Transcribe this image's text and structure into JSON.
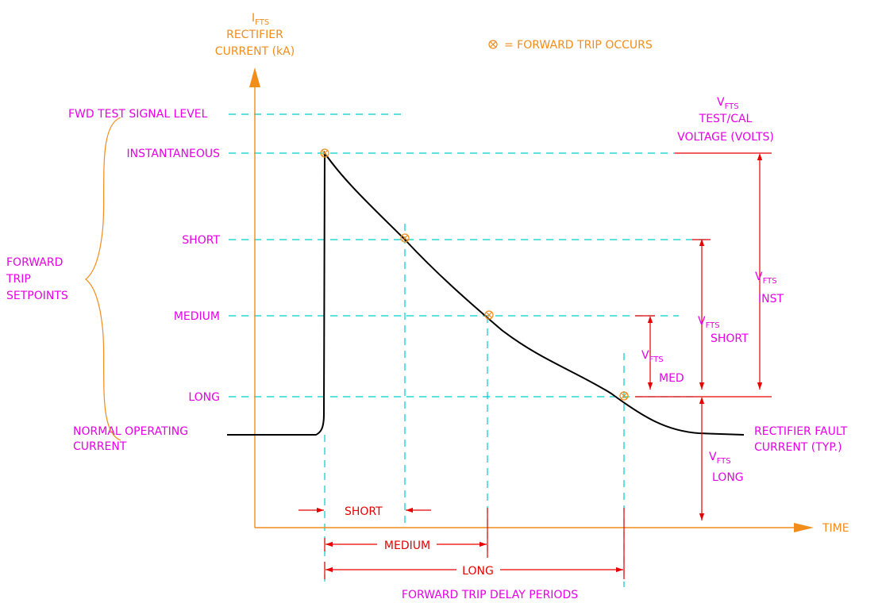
{
  "y_axis_label": {
    "symbol": "I",
    "subscript": "FTS",
    "line1": "RECTIFIER",
    "line2": "CURRENT (kA)"
  },
  "legend": {
    "symbol": "⊗",
    "text": "= FORWARD TRIP OCCURS"
  },
  "levels": {
    "fwd_test_signal": "FWD TEST SIGNAL LEVEL",
    "instantaneous": "INSTANTANEOUS",
    "short": "SHORT",
    "medium": "MEDIUM",
    "long": "LONG",
    "normal_line1": "NORMAL OPERATING",
    "normal_line2": "CURRENT"
  },
  "setpoints_group": {
    "line1": "FORWARD",
    "line2": "TRIP",
    "line3": "SETPOINTS"
  },
  "voltage_axis": {
    "symbol": "V",
    "subscript": "FTS",
    "line1": "TEST/CAL",
    "line2": "VOLTAGE (VOLTS)"
  },
  "vfts": {
    "symbol": "V",
    "subscript": "FTS",
    "inst": "INST",
    "short": "SHORT",
    "med": "MED",
    "long": "LONG"
  },
  "fault_current": {
    "line1": "RECTIFIER FAULT",
    "line2": "CURRENT (TYP.)"
  },
  "x_axis_label": "TIME",
  "delay_periods": {
    "short": "SHORT",
    "medium": "MEDIUM",
    "long": "LONG",
    "caption": "FORWARD TRIP DELAY PERIODS"
  },
  "colors": {
    "axis": "#f28c1a",
    "level_text": "#e600e6",
    "dimension": "#e60000",
    "guide": "#00cccc",
    "curve": "#000000"
  }
}
